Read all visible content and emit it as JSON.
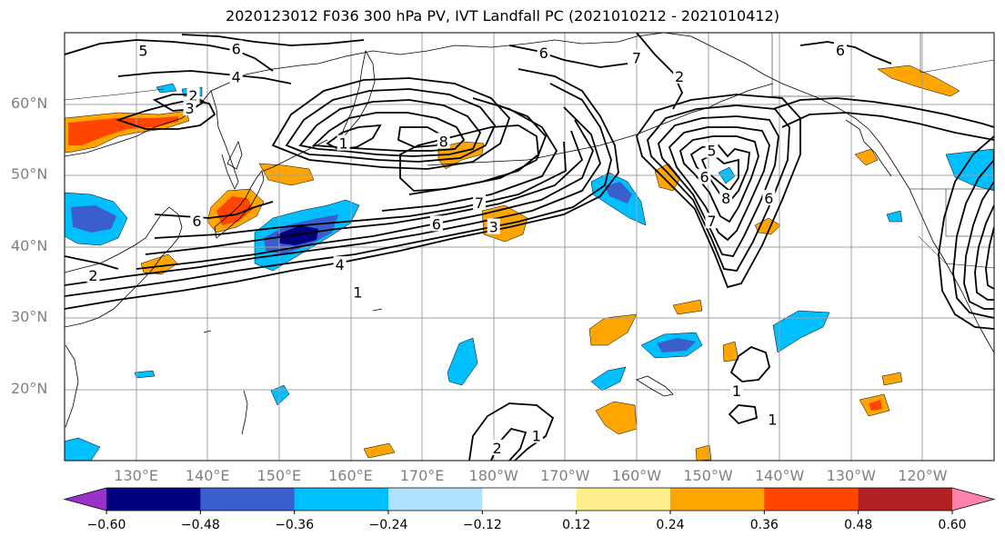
{
  "title": "2020123012 F036 300 hPa PV, IVT Landfall PC (2021010212 - 2021010412)",
  "map": {
    "projection": "PlateCarree",
    "lon_range": [
      120,
      250
    ],
    "lat_range": [
      10,
      70
    ],
    "gridlines": true,
    "coastlines": true,
    "borders": true,
    "lat_ticks": [
      {
        "value": 60,
        "label": "60°N"
      },
      {
        "value": 50,
        "label": "50°N"
      },
      {
        "value": 40,
        "label": "40°N"
      },
      {
        "value": 30,
        "label": "30°N"
      },
      {
        "value": 20,
        "label": "20°N"
      }
    ],
    "lon_ticks": [
      {
        "value": 130,
        "label": "130°E"
      },
      {
        "value": 140,
        "label": "140°E"
      },
      {
        "value": 150,
        "label": "150°E"
      },
      {
        "value": 160,
        "label": "160°E"
      },
      {
        "value": 170,
        "label": "170°E"
      },
      {
        "value": 180,
        "label": "180°W"
      },
      {
        "value": 190,
        "label": "170°W"
      },
      {
        "value": 200,
        "label": "160°W"
      },
      {
        "value": 210,
        "label": "150°W"
      },
      {
        "value": 220,
        "label": "140°W"
      },
      {
        "value": 230,
        "label": "130°W"
      },
      {
        "value": 240,
        "label": "120°W"
      }
    ]
  },
  "chart_data": {
    "type": "heatmap",
    "description_fields": "filled IVT PC shading with PV contours",
    "colorbar": {
      "extend": "both",
      "ticks": [
        "−0.60",
        "−0.48",
        "−0.36",
        "−0.24",
        "−0.12",
        "0.12",
        "0.24",
        "0.36",
        "0.48",
        "0.60"
      ],
      "colors": [
        "#9932cc",
        "#000080",
        "#3a5fcd",
        "#00bfff",
        "#b0e2ff",
        "#ffffff",
        "#ffec8b",
        "#ffa500",
        "#ff4500",
        "#b22222",
        "#ff82ab"
      ]
    },
    "pv_contour_labels": [
      {
        "lon": 131,
        "lat": 67.5,
        "label": "5"
      },
      {
        "lon": 144,
        "lat": 67.8,
        "label": "6"
      },
      {
        "lon": 144,
        "lat": 63.8,
        "label": "4"
      },
      {
        "lon": 138,
        "lat": 61.2,
        "label": "2"
      },
      {
        "lon": 137.5,
        "lat": 59.4,
        "label": "3"
      },
      {
        "lon": 159,
        "lat": 54.5,
        "label": "1"
      },
      {
        "lon": 173,
        "lat": 54.8,
        "label": "8"
      },
      {
        "lon": 178,
        "lat": 46.2,
        "label": "7"
      },
      {
        "lon": 172,
        "lat": 43.2,
        "label": "6"
      },
      {
        "lon": 180,
        "lat": 42.8,
        "label": "3"
      },
      {
        "lon": 138.5,
        "lat": 43.6,
        "label": "6"
      },
      {
        "lon": 158.5,
        "lat": 37.5,
        "label": "4"
      },
      {
        "lon": 161,
        "lat": 33.6,
        "label": "1"
      },
      {
        "lon": 124,
        "lat": 36.0,
        "label": "2"
      },
      {
        "lon": 206,
        "lat": 63.9,
        "label": "2"
      },
      {
        "lon": 210.5,
        "lat": 53.5,
        "label": "5"
      },
      {
        "lon": 209.5,
        "lat": 49.8,
        "label": "6"
      },
      {
        "lon": 210.5,
        "lat": 43.6,
        "label": "7"
      },
      {
        "lon": 212.5,
        "lat": 46.8,
        "label": "8"
      },
      {
        "lon": 218.5,
        "lat": 46.8,
        "label": "6"
      },
      {
        "lon": 228.5,
        "lat": 67.6,
        "label": "6"
      },
      {
        "lon": 200,
        "lat": 66.5,
        "label": "7"
      },
      {
        "lon": 187,
        "lat": 67.2,
        "label": "6"
      },
      {
        "lon": 186,
        "lat": 13.5,
        "label": "1"
      },
      {
        "lon": 180.5,
        "lat": 11.8,
        "label": "2"
      },
      {
        "lon": 214,
        "lat": 19.8,
        "label": "1"
      },
      {
        "lon": 219,
        "lat": 15.8,
        "label": "1"
      }
    ],
    "shaded_regions": [
      {
        "lon": 123,
        "lat": 58.5,
        "class": "0.36"
      },
      {
        "lon": 131,
        "lat": 59,
        "class": "0.36"
      },
      {
        "lon": 124,
        "lat": 43,
        "class": "−0.36"
      },
      {
        "lon": 143,
        "lat": 44,
        "class": "0.36"
      },
      {
        "lon": 154,
        "lat": 41,
        "class": "−0.48"
      },
      {
        "lon": 175.5,
        "lat": 53,
        "class": "0.24"
      },
      {
        "lon": 179.5,
        "lat": 42.5,
        "class": "0.24"
      },
      {
        "lon": 199,
        "lat": 46.5,
        "class": "−0.36"
      },
      {
        "lon": 205.5,
        "lat": 48,
        "class": "0.24"
      },
      {
        "lon": 243,
        "lat": 50.5,
        "class": "−0.24"
      },
      {
        "lon": 239,
        "lat": 64,
        "class": "0.36"
      },
      {
        "lon": 210,
        "lat": 26.5,
        "class": "−0.36"
      },
      {
        "lon": 222.5,
        "lat": 29.5,
        "class": "−0.24"
      },
      {
        "lon": 201,
        "lat": 28.5,
        "class": "0.24"
      },
      {
        "lon": 201.5,
        "lat": 17,
        "class": "0.24"
      },
      {
        "lon": 234,
        "lat": 17.5,
        "class": "0.36"
      },
      {
        "lon": 175,
        "lat": 24,
        "class": "−0.24"
      }
    ]
  }
}
